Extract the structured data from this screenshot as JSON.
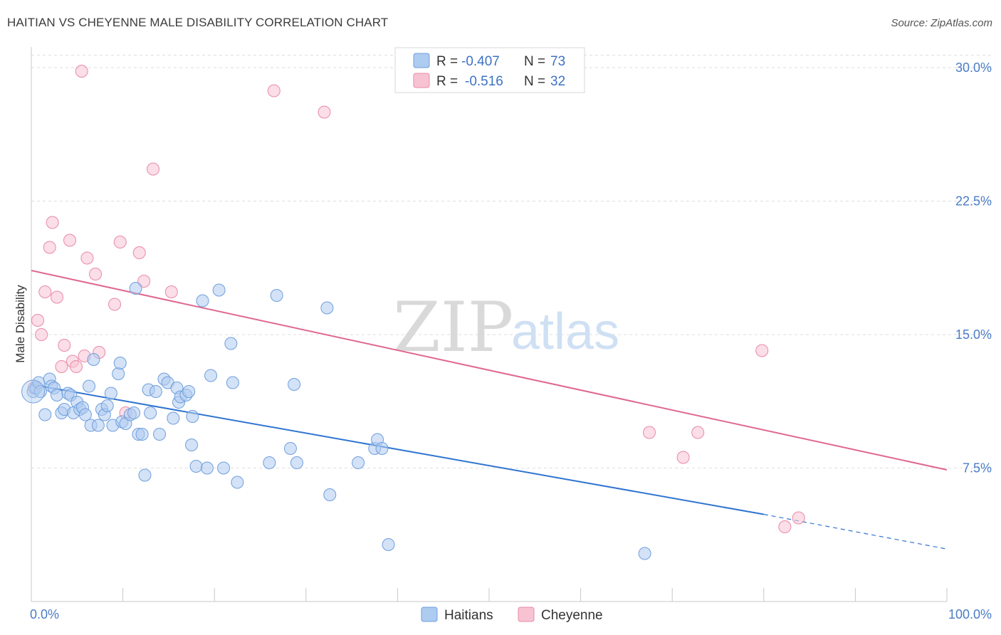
{
  "title": "HAITIAN VS CHEYENNE MALE DISABILITY CORRELATION CHART",
  "source": "Source: ZipAtlas.com",
  "watermark": {
    "part1": "ZIP",
    "part2": "atlas"
  },
  "colors": {
    "haitians_fill": "#aecbf0",
    "haitians_stroke": "#6f9fdc",
    "haitians_line": "#2f74d0",
    "cheyenne_fill": "#f7c3d3",
    "cheyenne_stroke": "#e88aa8",
    "cheyenne_line": "#e0678f",
    "tick_label": "#4a7cc6",
    "grid": "#dedede"
  },
  "legend": {
    "r_label": "R =",
    "n_label": "N =",
    "rows": [
      {
        "r": "-0.407",
        "n": "73"
      },
      {
        "r": "-0.516",
        "n": "32"
      }
    ]
  },
  "bottom_legend": [
    "Haitians",
    "Cheyenne"
  ],
  "chart_data": {
    "type": "scatter",
    "title": "HAITIAN VS CHEYENNE MALE DISABILITY CORRELATION CHART",
    "xlabel": "",
    "ylabel": "Male Disability",
    "xlim": [
      0,
      100
    ],
    "ylim": [
      0,
      31
    ],
    "x_tick_labels": [
      {
        "value": 0,
        "label": "0.0%"
      },
      {
        "value": 100,
        "label": "100.0%"
      }
    ],
    "y_ticks": [
      {
        "value": 7.5,
        "label": "7.5%"
      },
      {
        "value": 15.0,
        "label": "15.0%"
      },
      {
        "value": 22.5,
        "label": "22.5%"
      },
      {
        "value": 30.0,
        "label": "30.0%"
      }
    ],
    "series": [
      {
        "name": "Haitians",
        "r": -0.407,
        "n": 73,
        "trend": {
          "x0": 0,
          "y0": 12.2,
          "x1": 80,
          "y1": 4.9,
          "dash_to_x": 100,
          "dash_to_y": 2.95
        },
        "points": [
          [
            0.2,
            11.8
          ],
          [
            0.5,
            12.0
          ],
          [
            0.8,
            12.3
          ],
          [
            1.0,
            11.8
          ],
          [
            1.5,
            10.5
          ],
          [
            2.0,
            12.5
          ],
          [
            2.2,
            12.1
          ],
          [
            2.5,
            12.0
          ],
          [
            2.8,
            11.6
          ],
          [
            3.3,
            10.6
          ],
          [
            3.6,
            10.8
          ],
          [
            4.0,
            11.7
          ],
          [
            4.3,
            11.6
          ],
          [
            4.6,
            10.6
          ],
          [
            5.0,
            11.2
          ],
          [
            5.3,
            10.8
          ],
          [
            5.6,
            10.9
          ],
          [
            5.9,
            10.5
          ],
          [
            6.3,
            12.1
          ],
          [
            6.5,
            9.9
          ],
          [
            6.8,
            13.6
          ],
          [
            7.3,
            9.9
          ],
          [
            7.7,
            10.8
          ],
          [
            8.0,
            10.5
          ],
          [
            8.3,
            11.0
          ],
          [
            8.7,
            11.7
          ],
          [
            8.9,
            9.9
          ],
          [
            9.5,
            12.8
          ],
          [
            9.7,
            13.4
          ],
          [
            9.9,
            10.1
          ],
          [
            10.3,
            10.0
          ],
          [
            10.8,
            10.5
          ],
          [
            11.2,
            10.6
          ],
          [
            11.4,
            17.6
          ],
          [
            11.7,
            9.4
          ],
          [
            12.1,
            9.4
          ],
          [
            12.4,
            7.1
          ],
          [
            12.8,
            11.9
          ],
          [
            13.0,
            10.6
          ],
          [
            13.6,
            11.8
          ],
          [
            14.0,
            9.4
          ],
          [
            14.5,
            12.5
          ],
          [
            14.9,
            12.3
          ],
          [
            15.5,
            10.3
          ],
          [
            15.9,
            12.0
          ],
          [
            16.1,
            11.2
          ],
          [
            16.3,
            11.5
          ],
          [
            16.9,
            11.6
          ],
          [
            17.2,
            11.8
          ],
          [
            17.5,
            8.8
          ],
          [
            17.6,
            10.4
          ],
          [
            18.0,
            7.6
          ],
          [
            18.7,
            16.9
          ],
          [
            19.2,
            7.5
          ],
          [
            19.6,
            12.7
          ],
          [
            20.5,
            17.5
          ],
          [
            21.0,
            7.5
          ],
          [
            21.8,
            14.5
          ],
          [
            22.0,
            12.3
          ],
          [
            22.5,
            6.7
          ],
          [
            26.0,
            7.8
          ],
          [
            26.8,
            17.2
          ],
          [
            28.3,
            8.6
          ],
          [
            28.7,
            12.2
          ],
          [
            29.0,
            7.8
          ],
          [
            32.3,
            16.5
          ],
          [
            32.6,
            6.0
          ],
          [
            35.7,
            7.8
          ],
          [
            37.5,
            8.6
          ],
          [
            37.8,
            9.1
          ],
          [
            38.3,
            8.6
          ],
          [
            39.0,
            3.2
          ],
          [
            67.0,
            2.7
          ]
        ]
      },
      {
        "name": "Cheyenne",
        "r": -0.516,
        "n": 32,
        "trend": {
          "x0": 0,
          "y0": 18.6,
          "x1": 100,
          "y1": 7.4
        },
        "points": [
          [
            0.3,
            12.0
          ],
          [
            0.7,
            15.8
          ],
          [
            1.1,
            15.0
          ],
          [
            1.5,
            17.4
          ],
          [
            2.0,
            19.9
          ],
          [
            2.3,
            21.3
          ],
          [
            2.8,
            17.1
          ],
          [
            3.3,
            13.2
          ],
          [
            3.6,
            14.4
          ],
          [
            4.2,
            20.3
          ],
          [
            4.5,
            13.5
          ],
          [
            4.9,
            13.2
          ],
          [
            5.5,
            29.8
          ],
          [
            5.8,
            13.8
          ],
          [
            6.1,
            19.3
          ],
          [
            7.0,
            18.4
          ],
          [
            7.4,
            14.0
          ],
          [
            9.1,
            16.7
          ],
          [
            9.7,
            20.2
          ],
          [
            10.3,
            10.6
          ],
          [
            11.8,
            19.6
          ],
          [
            12.3,
            18.0
          ],
          [
            13.3,
            24.3
          ],
          [
            15.3,
            17.4
          ],
          [
            26.5,
            28.7
          ],
          [
            32.0,
            27.5
          ],
          [
            79.8,
            14.1
          ],
          [
            67.5,
            9.5
          ],
          [
            71.2,
            8.1
          ],
          [
            72.8,
            9.5
          ],
          [
            82.3,
            4.2
          ],
          [
            83.8,
            4.7
          ]
        ]
      }
    ]
  }
}
